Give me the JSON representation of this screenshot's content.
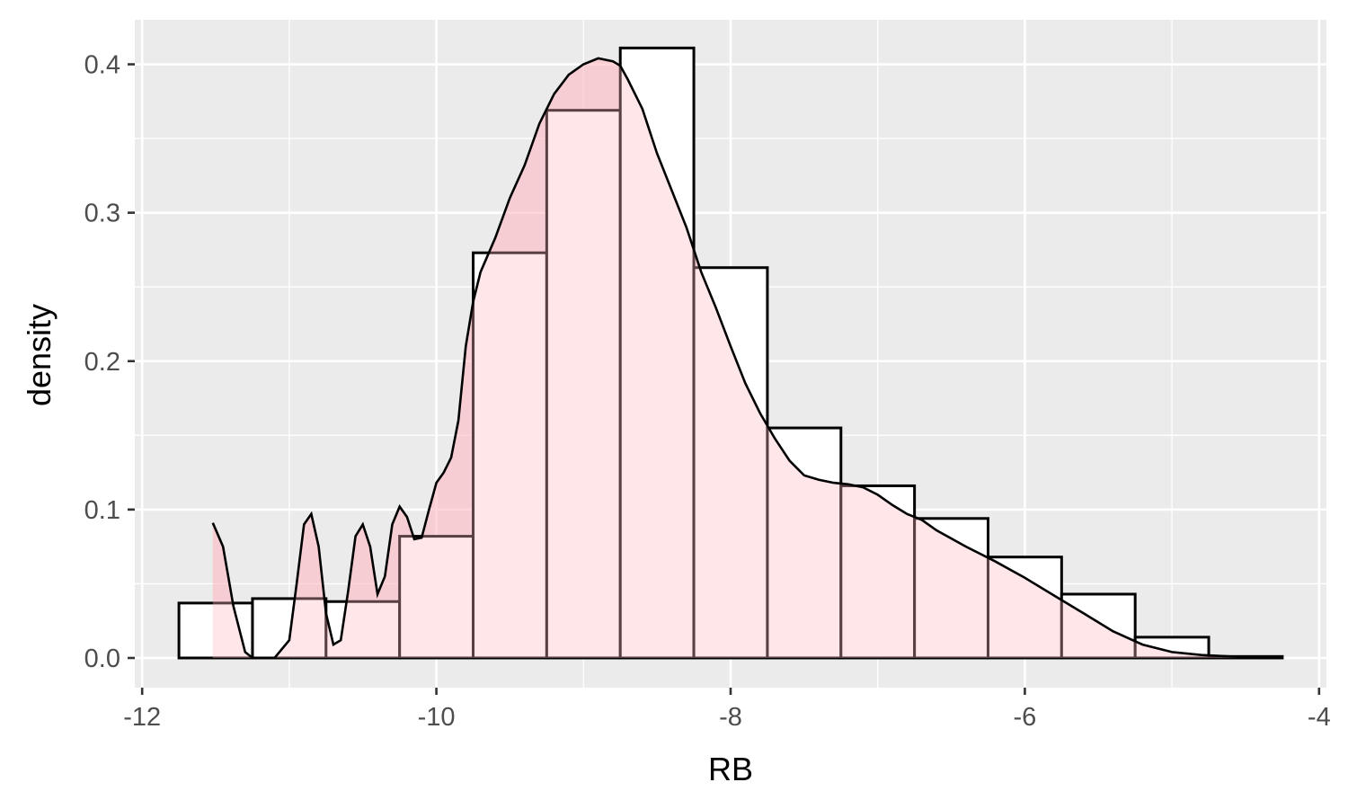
{
  "chart_data": {
    "type": "bar",
    "subtype": "histogram with density overlay",
    "xlabel": "RB",
    "ylabel": "density",
    "xlim": [
      -12.05,
      -3.95
    ],
    "ylim": [
      -0.02,
      0.43
    ],
    "x_ticks": [
      -12,
      -10,
      -8,
      -6,
      -4
    ],
    "x_tick_labels": [
      "-12",
      "-10",
      "-8",
      "-6",
      "-4"
    ],
    "y_ticks": [
      0.0,
      0.1,
      0.2,
      0.3,
      0.4
    ],
    "y_tick_labels": [
      "0.0",
      "0.1",
      "0.2",
      "0.3",
      "0.4"
    ],
    "grid": true,
    "histogram": {
      "bin_width": 0.5,
      "bin_left_edges": [
        -11.75,
        -11.25,
        -10.75,
        -10.25,
        -9.75,
        -9.25,
        -8.75,
        -8.25,
        -7.75,
        -7.25,
        -6.75,
        -6.25,
        -5.75,
        -5.25,
        -4.75
      ],
      "values": [
        0.037,
        0.04,
        0.038,
        0.082,
        0.273,
        0.369,
        0.411,
        0.263,
        0.155,
        0.116,
        0.094,
        0.068,
        0.043,
        0.014,
        0.001
      ],
      "fill": "#ffffff",
      "outline": "#000000"
    },
    "density": {
      "x": [
        -11.52,
        -11.45,
        -11.38,
        -11.3,
        -11.25,
        -11.2,
        -11.1,
        -11.0,
        -10.95,
        -10.9,
        -10.85,
        -10.8,
        -10.75,
        -10.7,
        -10.65,
        -10.6,
        -10.55,
        -10.5,
        -10.45,
        -10.4,
        -10.35,
        -10.3,
        -10.25,
        -10.2,
        -10.15,
        -10.1,
        -10.05,
        -10.0,
        -9.95,
        -9.9,
        -9.85,
        -9.8,
        -9.75,
        -9.7,
        -9.6,
        -9.5,
        -9.4,
        -9.3,
        -9.2,
        -9.1,
        -9.0,
        -8.9,
        -8.8,
        -8.75,
        -8.7,
        -8.6,
        -8.5,
        -8.4,
        -8.3,
        -8.2,
        -8.1,
        -8.0,
        -7.9,
        -7.8,
        -7.7,
        -7.6,
        -7.5,
        -7.4,
        -7.3,
        -7.2,
        -7.1,
        -7.0,
        -6.9,
        -6.8,
        -6.7,
        -6.6,
        -6.4,
        -6.2,
        -6.0,
        -5.8,
        -5.6,
        -5.4,
        -5.2,
        -5.0,
        -4.8,
        -4.6,
        -4.4,
        -4.27
      ],
      "y": [
        0.091,
        0.075,
        0.035,
        0.004,
        0.0,
        0.0,
        0.0,
        0.012,
        0.05,
        0.09,
        0.097,
        0.075,
        0.03,
        0.009,
        0.012,
        0.045,
        0.082,
        0.09,
        0.075,
        0.043,
        0.055,
        0.09,
        0.102,
        0.095,
        0.08,
        0.081,
        0.1,
        0.118,
        0.125,
        0.135,
        0.16,
        0.21,
        0.24,
        0.26,
        0.283,
        0.31,
        0.332,
        0.36,
        0.38,
        0.393,
        0.4,
        0.404,
        0.402,
        0.399,
        0.39,
        0.37,
        0.34,
        0.315,
        0.29,
        0.26,
        0.236,
        0.21,
        0.185,
        0.165,
        0.148,
        0.133,
        0.123,
        0.12,
        0.118,
        0.117,
        0.115,
        0.11,
        0.103,
        0.097,
        0.093,
        0.086,
        0.075,
        0.065,
        0.054,
        0.042,
        0.03,
        0.018,
        0.009,
        0.004,
        0.002,
        0.001,
        0.0,
        0.0
      ],
      "fill": "#ffb6c1",
      "fill_opacity": 0.35,
      "line_color": "#000000"
    },
    "colors": {
      "panel_background": "#ebebeb",
      "grid": "#ffffff",
      "tick_label": "#4d4d4d"
    }
  }
}
